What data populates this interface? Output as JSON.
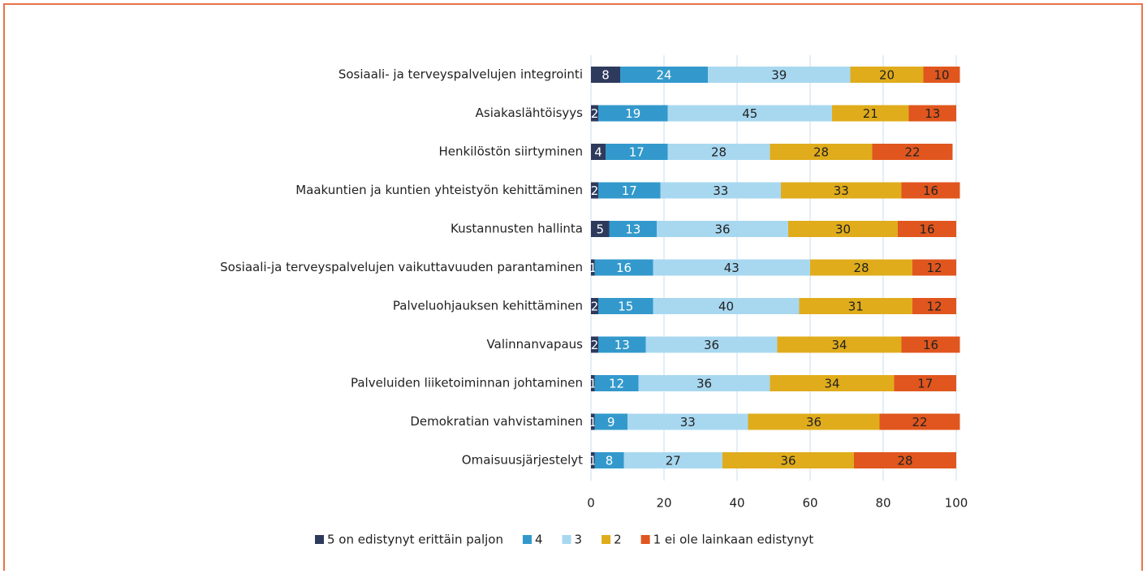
{
  "chart_data": {
    "type": "stacked-bar-horizontal",
    "categories": [
      "Sosiaali- ja terveyspalvelujen integrointi",
      "Asiakaslähtöisyys",
      "Henkilöstön siirtyminen",
      "Maakuntien ja kuntien yhteistyön kehittäminen",
      "Kustannusten hallinta",
      "Sosiaali-ja terveyspalvelujen vaikuttavuuden parantaminen",
      "Palveluohjauksen kehittäminen",
      "Valinnanvapaus",
      "Palveluiden liiketoiminnan johtaminen",
      "Demokratian vahvistaminen",
      "Omaisuusjärjestelyt"
    ],
    "series": [
      {
        "name": "5 on edistynyt erittäin paljon",
        "color": "#2e3a5c",
        "values": [
          8,
          2,
          4,
          2,
          5,
          1,
          2,
          2,
          1,
          1,
          1
        ]
      },
      {
        "name": "4",
        "color": "#3399cc",
        "values": [
          24,
          19,
          17,
          17,
          13,
          16,
          15,
          13,
          12,
          9,
          8
        ]
      },
      {
        "name": "3",
        "color": "#a8d8f0",
        "values": [
          39,
          45,
          28,
          33,
          36,
          43,
          40,
          36,
          36,
          33,
          27
        ]
      },
      {
        "name": "2",
        "color": "#e0ac1c",
        "values": [
          20,
          21,
          28,
          33,
          30,
          28,
          31,
          34,
          34,
          36,
          36
        ]
      },
      {
        "name": "1 ei ole lainkaan edistynyt",
        "color": "#e0561e",
        "values": [
          10,
          13,
          22,
          16,
          16,
          12,
          12,
          16,
          17,
          22,
          28
        ]
      }
    ],
    "xlim": [
      0,
      100
    ],
    "xticks": [
      0,
      20,
      40,
      60,
      80,
      100
    ],
    "grid": true,
    "legend": "bottom"
  }
}
